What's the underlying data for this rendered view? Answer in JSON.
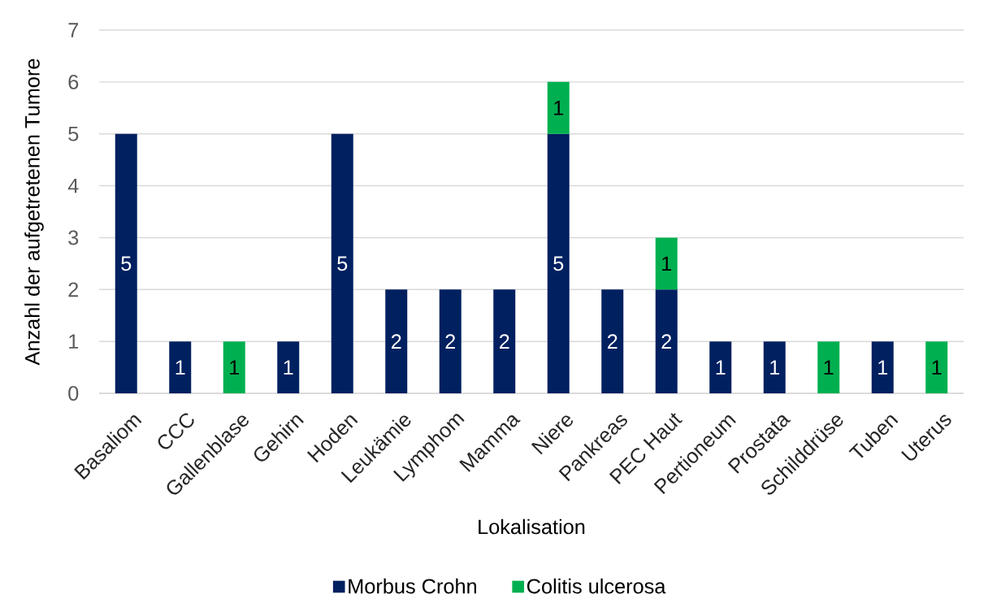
{
  "chart_data": {
    "type": "bar",
    "stacked": true,
    "xlabel": "Lokalisation",
    "ylabel": "Anzahl der aufgetretenen Tumore",
    "categories": [
      "Basaliom",
      "CCC",
      "Gallenblase",
      "Gehirn",
      "Hoden",
      "Leukämie",
      "Lymphom",
      "Mamma",
      "Niere",
      "Pankreas",
      "PEC Haut",
      "Pertioneum",
      "Prostata",
      "Schilddrüse",
      "Tuben",
      "Uterus"
    ],
    "series": [
      {
        "name": "Morbus Crohn",
        "color": "#002060",
        "values": [
          5,
          1,
          0,
          1,
          5,
          2,
          2,
          2,
          5,
          2,
          2,
          1,
          1,
          0,
          1,
          0
        ],
        "value_labels": [
          "5",
          "1",
          null,
          "1",
          "5",
          "2",
          "2",
          "2",
          "5",
          "2",
          "2",
          "1",
          "1",
          null,
          "1",
          null
        ]
      },
      {
        "name": "Colitis ulcerosa",
        "color": "#00b050",
        "values": [
          0,
          0,
          1,
          0,
          0,
          0,
          0,
          0,
          1,
          0,
          1,
          0,
          0,
          1,
          0,
          1
        ],
        "value_labels": [
          null,
          null,
          "1",
          null,
          null,
          null,
          null,
          null,
          "1",
          null,
          "1",
          null,
          null,
          "1",
          null,
          "1"
        ]
      }
    ],
    "ylim": [
      0,
      7
    ],
    "yticks": [
      0,
      1,
      2,
      3,
      4,
      5,
      6,
      7
    ],
    "grid": "y",
    "legend": "bottom"
  }
}
